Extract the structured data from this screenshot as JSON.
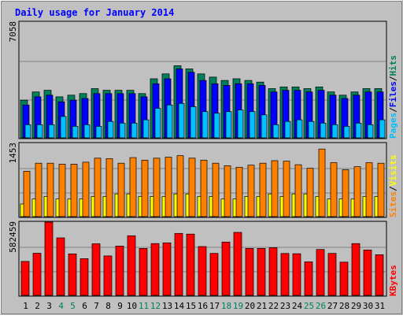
{
  "title": "Daily usage for January 2014",
  "days": [
    "1",
    "2",
    "3",
    "4",
    "5",
    "6",
    "7",
    "8",
    "9",
    "10",
    "11",
    "12",
    "13",
    "14",
    "15",
    "16",
    "17",
    "18",
    "19",
    "20",
    "21",
    "22",
    "23",
    "24",
    "25",
    "26",
    "27",
    "28",
    "29",
    "30",
    "31"
  ],
  "weekend_days": [
    "4",
    "5",
    "11",
    "12",
    "18",
    "19",
    "25",
    "26"
  ],
  "colors": {
    "background": "#C0C0C0",
    "title": "#0000FF",
    "hits": "#00805C",
    "files": "#0000FF",
    "pages": "#00C0FF",
    "visits": "#FFFF00",
    "sites": "#FF8000",
    "kbytes": "#FF0000",
    "weekend": "#00805C"
  },
  "chart_data": [
    {
      "type": "bar",
      "name": "hits-files-pages",
      "ylabel_max": "7058",
      "legend": [
        "Pages",
        "/",
        "Files",
        "/",
        "Hits"
      ],
      "ylim": [
        0,
        7058
      ],
      "series": [
        {
          "name": "Hits",
          "values": [
            2300,
            2800,
            2900,
            2500,
            2600,
            2700,
            3000,
            2900,
            2900,
            2900,
            2700,
            3600,
            3900,
            4400,
            4200,
            3900,
            3700,
            3500,
            3600,
            3500,
            3400,
            3000,
            3100,
            3100,
            3000,
            3100,
            2800,
            2600,
            2800,
            3000,
            3000
          ]
        },
        {
          "name": "Files",
          "values": [
            2000,
            2500,
            2600,
            2200,
            2300,
            2400,
            2700,
            2700,
            2700,
            2700,
            2500,
            3300,
            3600,
            4200,
            4000,
            3500,
            3300,
            3200,
            3300,
            3300,
            3200,
            2800,
            2900,
            2900,
            2800,
            2900,
            2600,
            2400,
            2600,
            2800,
            2800
          ]
        },
        {
          "name": "Pages",
          "values": [
            800,
            800,
            800,
            1300,
            700,
            800,
            700,
            1000,
            900,
            900,
            1100,
            1800,
            2000,
            2100,
            1900,
            1600,
            1500,
            1600,
            1700,
            1600,
            1400,
            800,
            1000,
            1100,
            1000,
            900,
            800,
            700,
            900,
            800,
            1100
          ]
        }
      ]
    },
    {
      "type": "bar",
      "name": "sites-visits",
      "ylabel_max": "1453",
      "legend": [
        "Sites",
        "/",
        "Visits"
      ],
      "ylim": [
        0,
        1453
      ],
      "series": [
        {
          "name": "Visits",
          "values": [
            250,
            350,
            400,
            350,
            350,
            350,
            400,
            400,
            450,
            450,
            400,
            400,
            400,
            450,
            450,
            400,
            400,
            350,
            350,
            400,
            400,
            450,
            400,
            450,
            450,
            400,
            350,
            350,
            350,
            400,
            400
          ]
        },
        {
          "name": "Sites",
          "values": [
            900,
            1060,
            1060,
            1040,
            1040,
            1080,
            1160,
            1150,
            1060,
            1170,
            1120,
            1160,
            1180,
            1210,
            1160,
            1120,
            1060,
            1010,
            980,
            1020,
            1060,
            1110,
            1100,
            1030,
            960,
            1340,
            1070,
            930,
            990,
            1070,
            1060
          ]
        }
      ]
    },
    {
      "type": "bar",
      "name": "kbytes",
      "ylabel_max": "582459",
      "legend": [
        "KBytes"
      ],
      "ylim": [
        0,
        582459
      ],
      "series": [
        {
          "name": "KBytes",
          "values": [
            270000,
            335000,
            582459,
            457000,
            330000,
            292000,
            410000,
            314000,
            392000,
            474000,
            373000,
            412000,
            418000,
            493000,
            487000,
            388000,
            334000,
            424000,
            501000,
            373000,
            373000,
            379000,
            333000,
            331000,
            267000,
            365000,
            334000,
            264000,
            412000,
            361000,
            323000
          ]
        }
      ]
    }
  ]
}
